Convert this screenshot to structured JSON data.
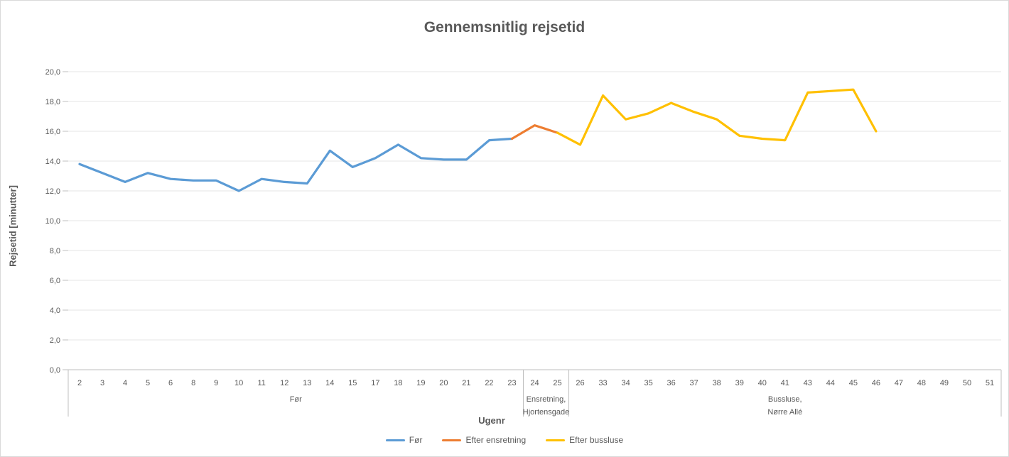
{
  "chart_data": {
    "type": "line",
    "title": "Gennemsnitlig rejsetid",
    "xlabel": "Ugenr",
    "ylabel": "Rejsetid [minutter]",
    "ylim": [
      0,
      20
    ],
    "ytick_step": 2,
    "ytick_labels": [
      "0,0",
      "2,0",
      "4,0",
      "6,0",
      "8,0",
      "10,0",
      "12,0",
      "14,0",
      "16,0",
      "18,0",
      "20,0"
    ],
    "grid": "horizontal",
    "legend_position": "bottom",
    "categories": [
      "2",
      "3",
      "4",
      "5",
      "6",
      "8",
      "9",
      "10",
      "11",
      "12",
      "13",
      "14",
      "15",
      "17",
      "18",
      "19",
      "20",
      "21",
      "22",
      "23",
      "24",
      "25",
      "26",
      "33",
      "34",
      "35",
      "36",
      "37",
      "38",
      "39",
      "40",
      "41",
      "43",
      "44",
      "45",
      "46",
      "47",
      "48",
      "49",
      "50",
      "51"
    ],
    "series": [
      {
        "name": "Før",
        "color": "#5B9BD5",
        "x": [
          2,
          3,
          4,
          5,
          6,
          8,
          9,
          10,
          11,
          12,
          13,
          14,
          15,
          17,
          18,
          19,
          20,
          21,
          22,
          23
        ],
        "y": [
          13.8,
          13.2,
          12.6,
          13.2,
          12.8,
          12.7,
          12.7,
          12.0,
          12.8,
          12.6,
          12.5,
          14.7,
          13.6,
          14.2,
          15.1,
          14.2,
          14.1,
          14.1,
          15.4,
          15.5
        ]
      },
      {
        "name": "Efter ensretning",
        "color": "#ED7D31",
        "x": [
          23,
          24,
          25
        ],
        "y": [
          15.5,
          16.4,
          15.9
        ]
      },
      {
        "name": "Efter bussluse",
        "color": "#FFC000",
        "x": [
          25,
          26,
          33,
          34,
          35,
          36,
          37,
          38,
          39,
          40,
          41,
          43,
          44,
          45,
          46
        ],
        "y": [
          15.9,
          15.1,
          18.4,
          16.8,
          17.2,
          17.9,
          17.3,
          16.8,
          15.7,
          15.5,
          15.4,
          18.6,
          18.7,
          18.8,
          16.0
        ]
      }
    ],
    "groups": [
      {
        "label_lines": [
          "Før"
        ],
        "from_week": "2",
        "to_week": "23"
      },
      {
        "label_lines": [
          "Ensretning,",
          "Hjortensgade"
        ],
        "from_week": "24",
        "to_week": "25"
      },
      {
        "label_lines": [
          "Bussluse,",
          "Nørre Allé"
        ],
        "from_week": "26",
        "to_week": "51"
      }
    ]
  }
}
